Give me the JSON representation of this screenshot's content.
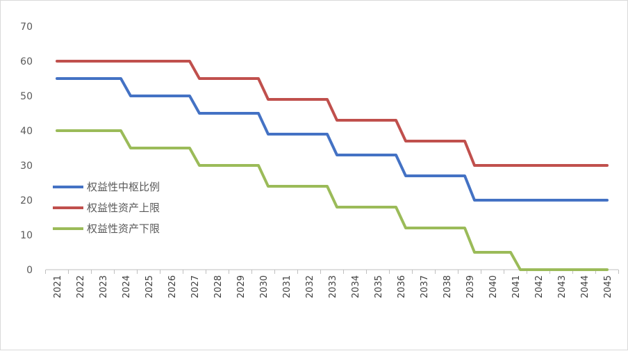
{
  "chart_data": {
    "type": "line",
    "title": "",
    "xlabel": "",
    "ylabel": "",
    "ylim": [
      0,
      70
    ],
    "yticks": [
      0,
      10,
      20,
      30,
      40,
      50,
      60,
      70
    ],
    "grid": false,
    "legend_position": "left-center",
    "categories": [
      "2021",
      "2022",
      "2023",
      "2024",
      "2025",
      "2026",
      "2027",
      "2028",
      "2029",
      "2030",
      "2031",
      "2032",
      "2033",
      "2034",
      "2035",
      "2036",
      "2037",
      "2038",
      "2039",
      "2040",
      "2041",
      "2042",
      "2043",
      "2044",
      "2045"
    ],
    "series": [
      {
        "name": "权益性中枢比例",
        "color": "#4472c4",
        "values": [
          55,
          55,
          55,
          50,
          50,
          50,
          45,
          45,
          45,
          39,
          39,
          39,
          33,
          33,
          33,
          27,
          27,
          27,
          20,
          20,
          20,
          20,
          20,
          20,
          20
        ]
      },
      {
        "name": "权益性资产上限",
        "color": "#c0504d",
        "values": [
          60,
          60,
          60,
          60,
          60,
          60,
          55,
          55,
          55,
          49,
          49,
          49,
          43,
          43,
          43,
          37,
          37,
          37,
          30,
          30,
          30,
          30,
          30,
          30,
          30
        ]
      },
      {
        "name": "权益性资产下限",
        "color": "#9bbb59",
        "values": [
          40,
          40,
          40,
          35,
          35,
          35,
          30,
          30,
          30,
          24,
          24,
          24,
          18,
          18,
          18,
          12,
          12,
          12,
          5,
          5,
          0,
          0,
          0,
          0,
          0
        ]
      }
    ]
  }
}
